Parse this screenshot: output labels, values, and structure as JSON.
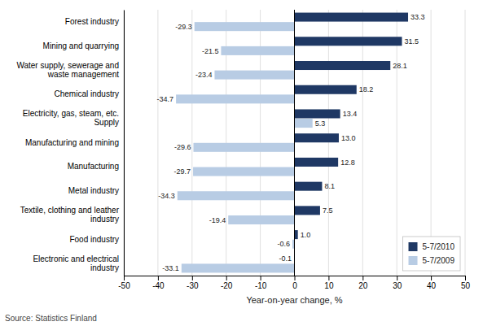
{
  "chart_data": {
    "type": "bar",
    "orientation": "horizontal",
    "categories": [
      "Forest industry",
      "Mining and quarrying",
      "Water supply, sewerage and waste management",
      "Chemical industry",
      "Electricity, gas, steam, etc. Supply",
      "Manufacturing and mining",
      "Manufacturing",
      "Metal industry",
      "Textile, clothing and leather industry",
      "Food industry",
      "Electronic and electrical industry"
    ],
    "series": [
      {
        "name": "5-7/2010",
        "color": "#1F3864",
        "values": [
          33.3,
          31.5,
          28.1,
          18.2,
          13.4,
          13.0,
          12.8,
          8.1,
          7.5,
          1.0,
          -0.1
        ],
        "value_labels": [
          "33.3",
          "31.5",
          "28.1",
          "18.2",
          "13.4",
          "13.0",
          "12.8",
          "8.1",
          "7.5",
          "1.0",
          "-0.1"
        ]
      },
      {
        "name": "5-7/2009",
        "color": "#B8CCE4",
        "values": [
          -29.3,
          -21.5,
          -23.4,
          -34.7,
          5.3,
          -29.6,
          -29.7,
          -34.3,
          -19.4,
          -0.6,
          -33.1
        ]
      }
    ],
    "x_label": "Year-on-year change, %",
    "xlim": [
      -50,
      50
    ],
    "xticks": [
      -50,
      -40,
      -30,
      -20,
      -10,
      0,
      10,
      20,
      30,
      40,
      50
    ],
    "grid": true,
    "legend": "lower right",
    "data_labels": true,
    "annotations": [
      "Source: Statistics Finland"
    ]
  }
}
